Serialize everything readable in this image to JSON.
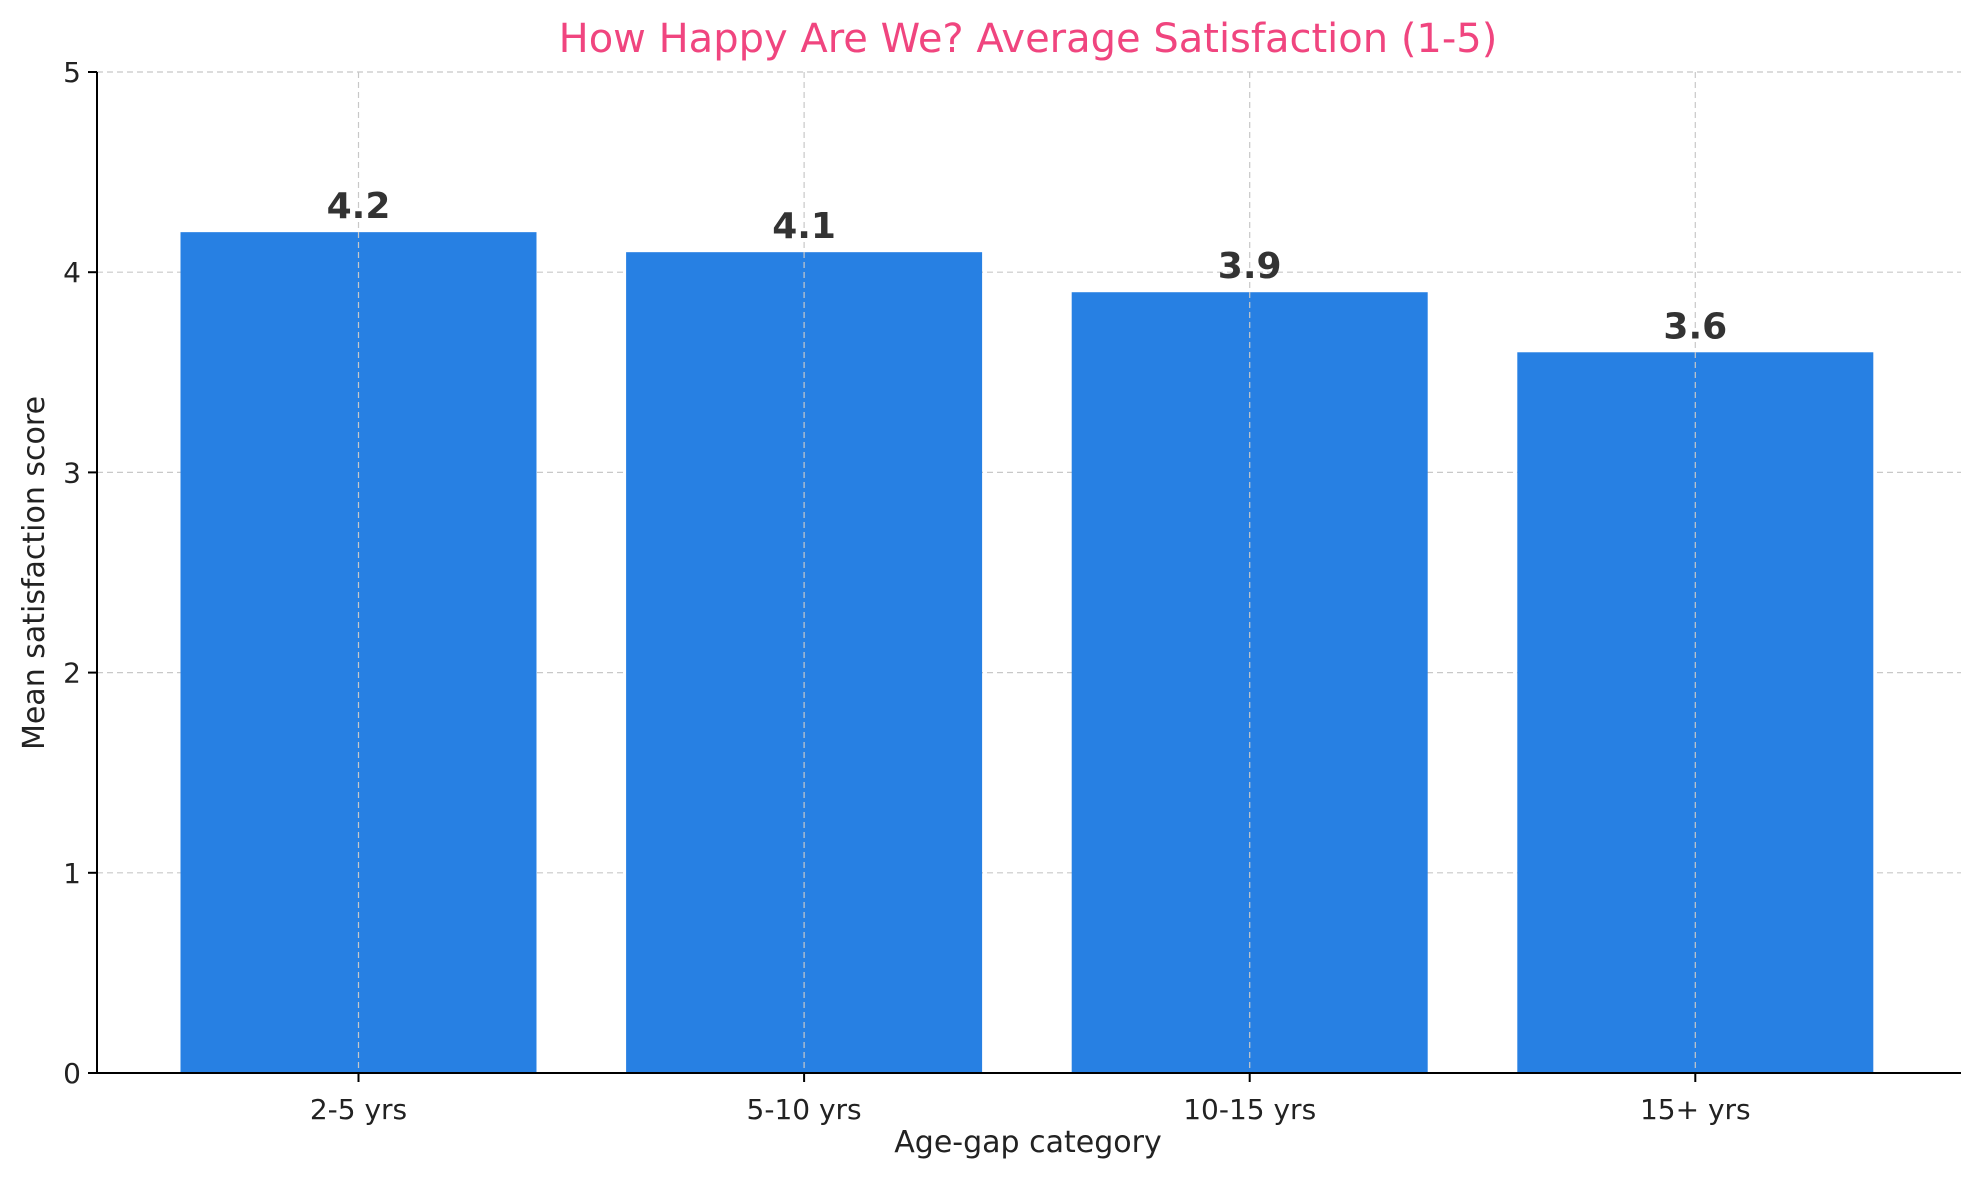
{
  "colors": {
    "bar": "#2780e3",
    "title": "#f0457f",
    "grid": "#c8c8c8",
    "value_label": "#333333"
  },
  "chart_data": {
    "type": "bar",
    "title": "How Happy Are We? Average Satisfaction (1-5)",
    "xlabel": "Age-gap category",
    "ylabel": "Mean satisfaction score",
    "categories": [
      "2-5 yrs",
      "5-10 yrs",
      "10-15 yrs",
      "15+ yrs"
    ],
    "values": [
      4.2,
      4.1,
      3.9,
      3.6
    ],
    "value_labels": [
      "4.2",
      "4.1",
      "3.9",
      "3.6"
    ],
    "ylim": [
      0,
      5
    ],
    "yticks": [
      "0",
      "1",
      "2",
      "3",
      "4",
      "5"
    ],
    "grid": true,
    "legend": "none"
  }
}
